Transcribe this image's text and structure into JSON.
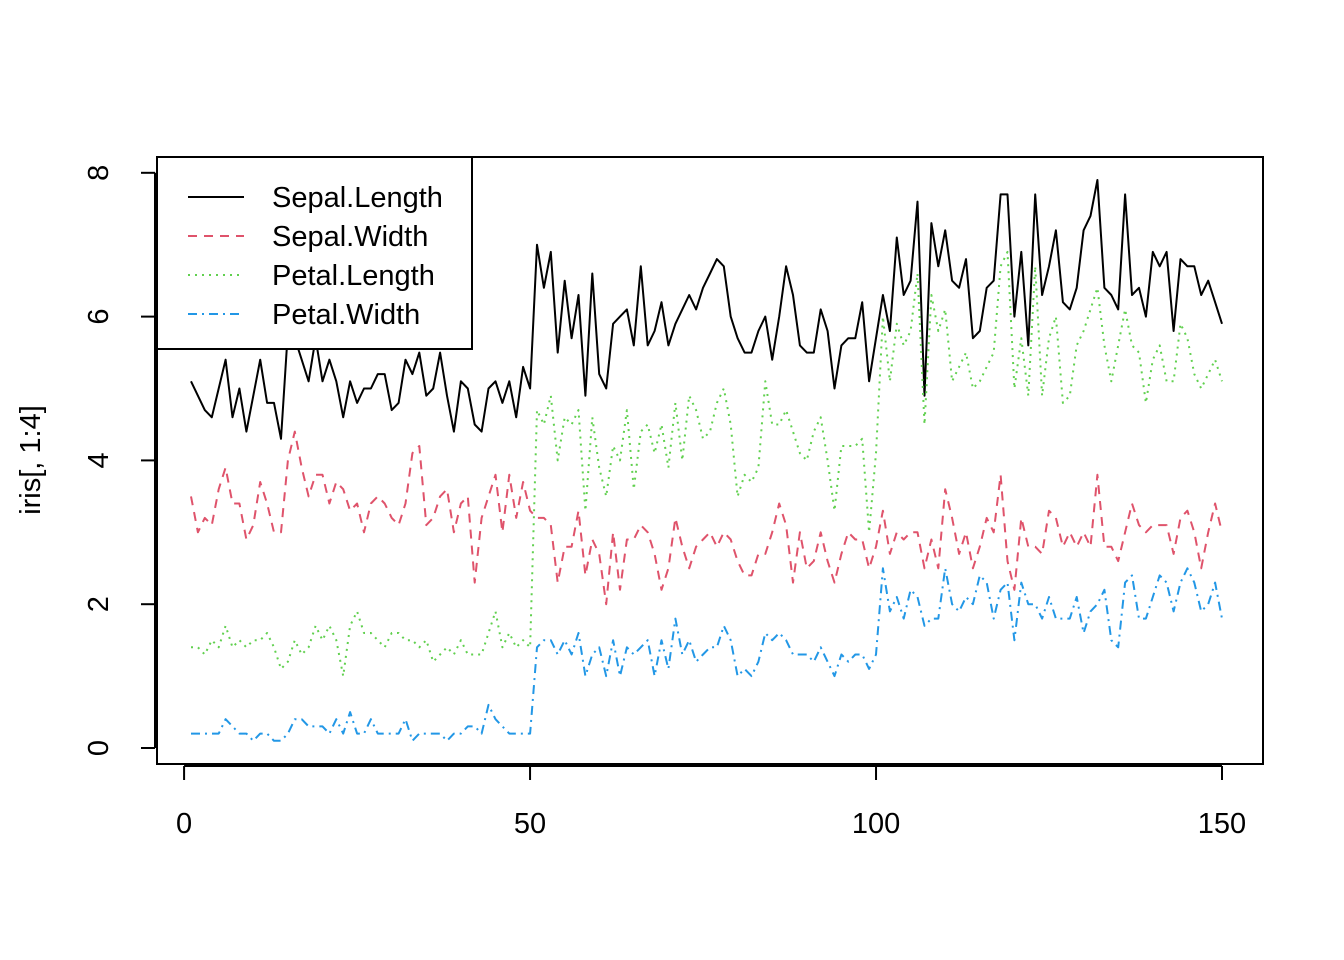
{
  "chart_data": {
    "type": "line",
    "title": "",
    "xlabel": "",
    "ylabel": "iris[, 1:4]",
    "xlim": [
      1,
      150
    ],
    "ylim": [
      0,
      7.9
    ],
    "xticks": [
      0,
      50,
      100,
      150
    ],
    "yticks": [
      0,
      2,
      4,
      6,
      8
    ],
    "grid": false,
    "legend_position": "top-left",
    "x": [
      1,
      2,
      3,
      4,
      5,
      6,
      7,
      8,
      9,
      10,
      11,
      12,
      13,
      14,
      15,
      16,
      17,
      18,
      19,
      20,
      21,
      22,
      23,
      24,
      25,
      26,
      27,
      28,
      29,
      30,
      31,
      32,
      33,
      34,
      35,
      36,
      37,
      38,
      39,
      40,
      41,
      42,
      43,
      44,
      45,
      46,
      47,
      48,
      49,
      50,
      51,
      52,
      53,
      54,
      55,
      56,
      57,
      58,
      59,
      60,
      61,
      62,
      63,
      64,
      65,
      66,
      67,
      68,
      69,
      70,
      71,
      72,
      73,
      74,
      75,
      76,
      77,
      78,
      79,
      80,
      81,
      82,
      83,
      84,
      85,
      86,
      87,
      88,
      89,
      90,
      91,
      92,
      93,
      94,
      95,
      96,
      97,
      98,
      99,
      100,
      101,
      102,
      103,
      104,
      105,
      106,
      107,
      108,
      109,
      110,
      111,
      112,
      113,
      114,
      115,
      116,
      117,
      118,
      119,
      120,
      121,
      122,
      123,
      124,
      125,
      126,
      127,
      128,
      129,
      130,
      131,
      132,
      133,
      134,
      135,
      136,
      137,
      138,
      139,
      140,
      141,
      142,
      143,
      144,
      145,
      146,
      147,
      148,
      149,
      150
    ],
    "series": [
      {
        "name": "Sepal.Length",
        "color": "#000000",
        "dash": "",
        "values": [
          5.1,
          4.9,
          4.7,
          4.6,
          5.0,
          5.4,
          4.6,
          5.0,
          4.4,
          4.9,
          5.4,
          4.8,
          4.8,
          4.3,
          5.8,
          5.7,
          5.4,
          5.1,
          5.7,
          5.1,
          5.4,
          5.1,
          4.6,
          5.1,
          4.8,
          5.0,
          5.0,
          5.2,
          5.2,
          4.7,
          4.8,
          5.4,
          5.2,
          5.5,
          4.9,
          5.0,
          5.5,
          4.9,
          4.4,
          5.1,
          5.0,
          4.5,
          4.4,
          5.0,
          5.1,
          4.8,
          5.1,
          4.6,
          5.3,
          5.0,
          7.0,
          6.4,
          6.9,
          5.5,
          6.5,
          5.7,
          6.3,
          4.9,
          6.6,
          5.2,
          5.0,
          5.9,
          6.0,
          6.1,
          5.6,
          6.7,
          5.6,
          5.8,
          6.2,
          5.6,
          5.9,
          6.1,
          6.3,
          6.1,
          6.4,
          6.6,
          6.8,
          6.7,
          6.0,
          5.7,
          5.5,
          5.5,
          5.8,
          6.0,
          5.4,
          6.0,
          6.7,
          6.3,
          5.6,
          5.5,
          5.5,
          6.1,
          5.8,
          5.0,
          5.6,
          5.7,
          5.7,
          6.2,
          5.1,
          5.7,
          6.3,
          5.8,
          7.1,
          6.3,
          6.5,
          7.6,
          4.9,
          7.3,
          6.7,
          7.2,
          6.5,
          6.4,
          6.8,
          5.7,
          5.8,
          6.4,
          6.5,
          7.7,
          7.7,
          6.0,
          6.9,
          5.6,
          7.7,
          6.3,
          6.7,
          7.2,
          6.2,
          6.1,
          6.4,
          7.2,
          7.4,
          7.9,
          6.4,
          6.3,
          6.1,
          7.7,
          6.3,
          6.4,
          6.0,
          6.9,
          6.7,
          6.9,
          5.8,
          6.8,
          6.7,
          6.7,
          6.3,
          6.5,
          6.2,
          5.9
        ]
      },
      {
        "name": "Sepal.Width",
        "color": "#DF536B",
        "dash": "9 7",
        "values": [
          3.5,
          3.0,
          3.2,
          3.1,
          3.6,
          3.9,
          3.4,
          3.4,
          2.9,
          3.1,
          3.7,
          3.4,
          3.0,
          3.0,
          4.0,
          4.4,
          3.9,
          3.5,
          3.8,
          3.8,
          3.4,
          3.7,
          3.6,
          3.3,
          3.4,
          3.0,
          3.4,
          3.5,
          3.4,
          3.2,
          3.1,
          3.4,
          4.1,
          4.2,
          3.1,
          3.2,
          3.5,
          3.6,
          3.0,
          3.4,
          3.5,
          2.3,
          3.2,
          3.5,
          3.8,
          3.0,
          3.8,
          3.2,
          3.7,
          3.3,
          3.2,
          3.2,
          3.1,
          2.3,
          2.8,
          2.8,
          3.3,
          2.4,
          2.9,
          2.7,
          2.0,
          3.0,
          2.2,
          2.9,
          2.9,
          3.1,
          3.0,
          2.7,
          2.2,
          2.5,
          3.2,
          2.8,
          2.5,
          2.8,
          2.9,
          3.0,
          2.8,
          3.0,
          2.9,
          2.6,
          2.4,
          2.4,
          2.7,
          2.7,
          3.0,
          3.4,
          3.1,
          2.3,
          3.0,
          2.5,
          2.6,
          3.0,
          2.6,
          2.3,
          2.7,
          3.0,
          2.9,
          2.9,
          2.5,
          2.8,
          3.3,
          2.7,
          3.0,
          2.9,
          3.0,
          3.0,
          2.5,
          2.9,
          2.5,
          3.6,
          3.2,
          2.7,
          3.0,
          2.5,
          2.8,
          3.2,
          3.0,
          3.8,
          2.6,
          2.2,
          3.2,
          2.8,
          2.8,
          2.7,
          3.3,
          3.2,
          2.8,
          3.0,
          2.8,
          3.0,
          2.8,
          3.8,
          2.8,
          2.8,
          2.6,
          3.0,
          3.4,
          3.1,
          3.0,
          3.1,
          3.1,
          3.1,
          2.7,
          3.2,
          3.3,
          3.0,
          2.5,
          3.0,
          3.4,
          3.0
        ]
      },
      {
        "name": "Petal.Length",
        "color": "#61D04F",
        "dash": "2 5",
        "values": [
          1.4,
          1.4,
          1.3,
          1.5,
          1.4,
          1.7,
          1.4,
          1.5,
          1.4,
          1.5,
          1.5,
          1.6,
          1.4,
          1.1,
          1.2,
          1.5,
          1.3,
          1.4,
          1.7,
          1.5,
          1.7,
          1.5,
          1.0,
          1.7,
          1.9,
          1.6,
          1.6,
          1.5,
          1.4,
          1.6,
          1.6,
          1.5,
          1.5,
          1.4,
          1.5,
          1.2,
          1.3,
          1.4,
          1.3,
          1.5,
          1.3,
          1.3,
          1.3,
          1.6,
          1.9,
          1.4,
          1.6,
          1.4,
          1.5,
          1.4,
          4.7,
          4.5,
          4.9,
          4.0,
          4.6,
          4.5,
          4.7,
          3.3,
          4.6,
          3.9,
          3.5,
          4.2,
          4.0,
          4.7,
          3.6,
          4.4,
          4.5,
          4.1,
          4.5,
          3.9,
          4.8,
          4.0,
          4.9,
          4.7,
          4.3,
          4.4,
          4.8,
          5.0,
          4.5,
          3.5,
          3.8,
          3.7,
          3.9,
          5.1,
          4.5,
          4.5,
          4.7,
          4.4,
          4.1,
          4.0,
          4.4,
          4.6,
          4.0,
          3.3,
          4.2,
          4.2,
          4.2,
          4.3,
          3.0,
          4.1,
          6.0,
          5.1,
          5.9,
          5.6,
          5.8,
          6.6,
          4.5,
          6.3,
          5.8,
          6.1,
          5.1,
          5.3,
          5.5,
          5.0,
          5.1,
          5.3,
          5.5,
          6.7,
          6.9,
          5.0,
          5.7,
          4.9,
          6.7,
          4.9,
          5.7,
          6.0,
          4.8,
          4.9,
          5.6,
          5.8,
          6.1,
          6.4,
          5.6,
          5.1,
          5.6,
          6.1,
          5.6,
          5.5,
          4.8,
          5.4,
          5.6,
          5.1,
          5.1,
          5.9,
          5.7,
          5.2,
          5.0,
          5.2,
          5.4,
          5.1
        ]
      },
      {
        "name": "Petal.Width",
        "color": "#2297E6",
        "dash": "9 5 2 5",
        "values": [
          0.2,
          0.2,
          0.2,
          0.2,
          0.2,
          0.4,
          0.3,
          0.2,
          0.2,
          0.1,
          0.2,
          0.2,
          0.1,
          0.1,
          0.2,
          0.4,
          0.4,
          0.3,
          0.3,
          0.3,
          0.2,
          0.4,
          0.2,
          0.5,
          0.2,
          0.2,
          0.4,
          0.2,
          0.2,
          0.2,
          0.2,
          0.4,
          0.1,
          0.2,
          0.2,
          0.2,
          0.2,
          0.1,
          0.2,
          0.2,
          0.3,
          0.3,
          0.2,
          0.6,
          0.4,
          0.3,
          0.2,
          0.2,
          0.2,
          0.2,
          1.4,
          1.5,
          1.5,
          1.3,
          1.5,
          1.3,
          1.6,
          1.0,
          1.3,
          1.4,
          1.0,
          1.5,
          1.0,
          1.4,
          1.3,
          1.4,
          1.5,
          1.0,
          1.5,
          1.1,
          1.8,
          1.3,
          1.5,
          1.2,
          1.3,
          1.4,
          1.4,
          1.7,
          1.5,
          1.0,
          1.1,
          1.0,
          1.2,
          1.6,
          1.5,
          1.6,
          1.5,
          1.3,
          1.3,
          1.3,
          1.2,
          1.4,
          1.2,
          1.0,
          1.3,
          1.2,
          1.3,
          1.3,
          1.1,
          1.3,
          2.5,
          1.9,
          2.1,
          1.8,
          2.2,
          2.1,
          1.7,
          1.8,
          1.8,
          2.5,
          2.0,
          1.9,
          2.1,
          2.0,
          2.4,
          2.3,
          1.8,
          2.2,
          2.3,
          1.5,
          2.3,
          2.0,
          2.0,
          1.8,
          2.1,
          1.8,
          1.8,
          1.8,
          2.1,
          1.6,
          1.9,
          2.0,
          2.2,
          1.5,
          1.4,
          2.3,
          2.4,
          1.8,
          1.8,
          2.1,
          2.4,
          2.3,
          1.9,
          2.3,
          2.5,
          2.3,
          1.9,
          2.0,
          2.3,
          1.8
        ]
      }
    ]
  }
}
